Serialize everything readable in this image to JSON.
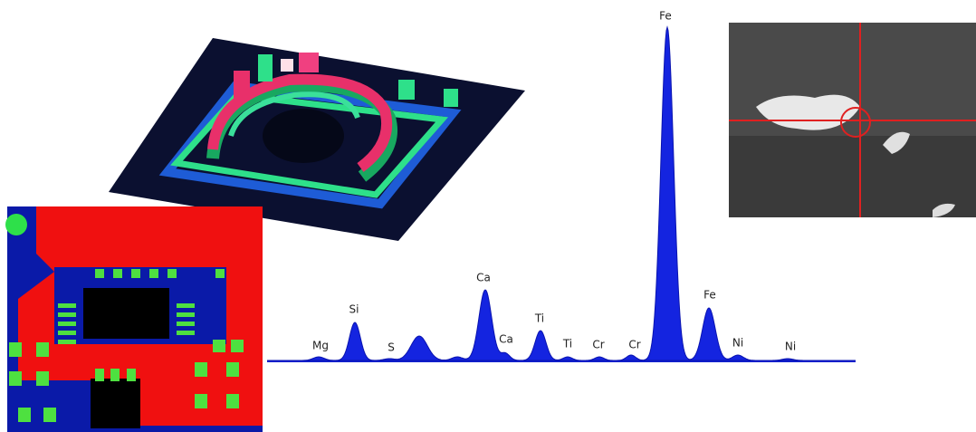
{
  "spectrum": {
    "peak_labels": [
      "Mg",
      "Si",
      "S",
      "Ca",
      "Ca",
      "Ti",
      "Ti",
      "Cr",
      "Cr",
      "Fe",
      "Fe",
      "Ni",
      "Ni"
    ]
  }
}
